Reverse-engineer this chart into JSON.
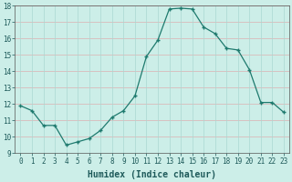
{
  "x": [
    0,
    1,
    2,
    3,
    4,
    5,
    6,
    7,
    8,
    9,
    10,
    11,
    12,
    13,
    14,
    15,
    16,
    17,
    18,
    19,
    20,
    21,
    22,
    23
  ],
  "y": [
    11.9,
    11.6,
    10.7,
    10.7,
    9.5,
    9.7,
    9.9,
    10.4,
    11.2,
    11.6,
    12.5,
    14.9,
    15.9,
    17.8,
    17.85,
    17.8,
    16.7,
    16.3,
    15.4,
    15.3,
    14.1,
    12.1,
    12.1,
    11.5
  ],
  "xlabel": "Humidex (Indice chaleur)",
  "ylim": [
    9,
    18
  ],
  "xlim": [
    -0.5,
    23.5
  ],
  "yticks": [
    9,
    10,
    11,
    12,
    13,
    14,
    15,
    16,
    17,
    18
  ],
  "xticks": [
    0,
    1,
    2,
    3,
    4,
    5,
    6,
    7,
    8,
    9,
    10,
    11,
    12,
    13,
    14,
    15,
    16,
    17,
    18,
    19,
    20,
    21,
    22,
    23
  ],
  "line_color": "#1e7a6e",
  "bg_color": "#cceee8",
  "hgrid_color": "#ddb0b0",
  "vgrid_color": "#aad8d2",
  "xlabel_fontsize": 7,
  "tick_fontsize": 5.5,
  "xlabel_color": "#1e5a5a",
  "tick_color": "#1e5a5a"
}
